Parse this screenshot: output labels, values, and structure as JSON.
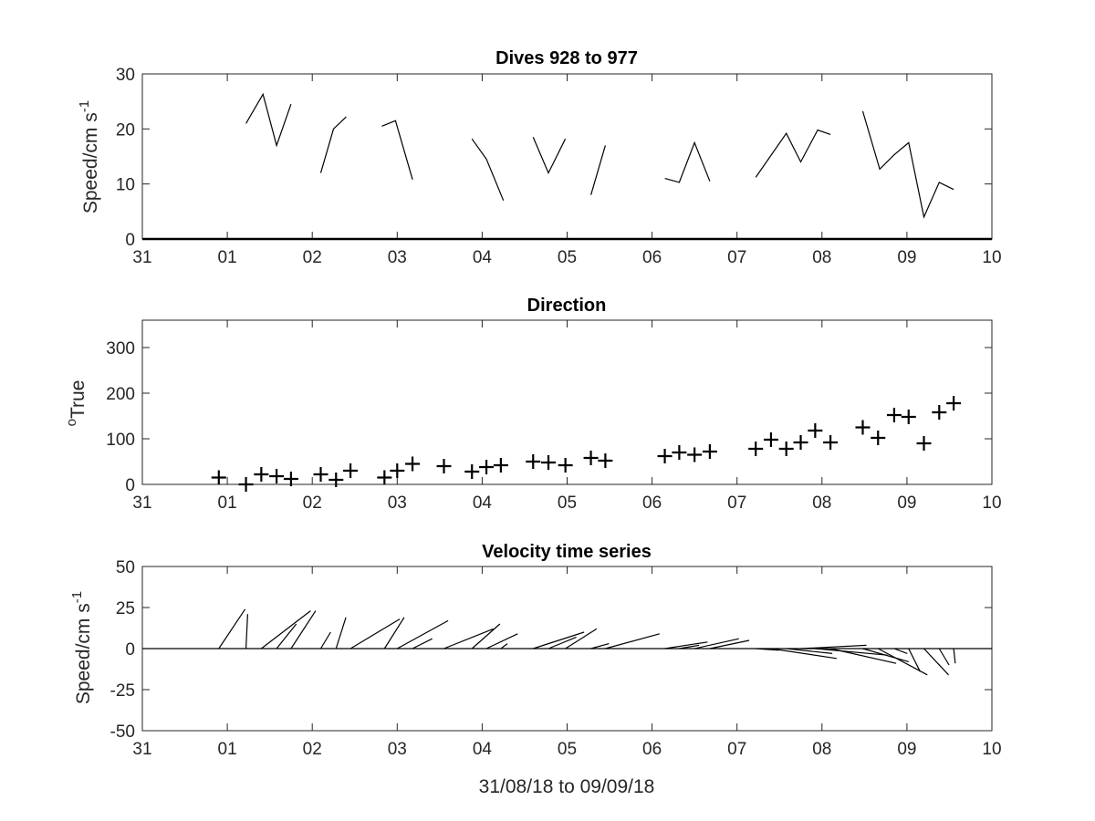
{
  "chart_data": [
    {
      "type": "line",
      "title": "Dives 928 to 977",
      "xlabel": "",
      "ylabel": "Speed/cm s",
      "ylabel_superscript": "-1",
      "xlim": [
        0,
        10
      ],
      "ylim": [
        0,
        30
      ],
      "xticklabels": [
        "31",
        "01",
        "02",
        "03",
        "04",
        "05",
        "06",
        "07",
        "08",
        "09",
        "10"
      ],
      "yticks": [
        0,
        10,
        20,
        30
      ],
      "grid": false,
      "segments": [
        [
          [
            1.22,
            21
          ],
          [
            1.42,
            26.3
          ],
          [
            1.58,
            17
          ],
          [
            1.75,
            24.5
          ]
        ],
        [
          [
            2.1,
            12
          ],
          [
            2.25,
            20
          ],
          [
            2.4,
            22.2
          ]
        ],
        [
          [
            2.82,
            20.5
          ],
          [
            2.98,
            21.5
          ],
          [
            3.18,
            10.8
          ]
        ],
        [
          [
            3.88,
            18.2
          ],
          [
            4.05,
            14.5
          ],
          [
            4.25,
            7
          ]
        ],
        [
          [
            4.6,
            18.5
          ],
          [
            4.78,
            12
          ],
          [
            4.98,
            18.2
          ]
        ],
        [
          [
            5.28,
            8
          ],
          [
            5.45,
            17
          ]
        ],
        [
          [
            6.15,
            11
          ],
          [
            6.32,
            10.3
          ],
          [
            6.5,
            17.5
          ],
          [
            6.68,
            10.5
          ]
        ],
        [
          [
            7.22,
            11.2
          ],
          [
            7.58,
            19.2
          ],
          [
            7.75,
            14
          ],
          [
            7.95,
            19.8
          ],
          [
            8.1,
            19
          ]
        ],
        [
          [
            8.48,
            23.2
          ],
          [
            8.68,
            12.7
          ],
          [
            8.85,
            15.3
          ],
          [
            9.02,
            17.5
          ],
          [
            9.2,
            4
          ],
          [
            9.38,
            10.3
          ],
          [
            9.55,
            9
          ]
        ]
      ]
    },
    {
      "type": "scatter",
      "title": "Direction",
      "xlabel": "",
      "ylabel": "True",
      "ylabel_superscript": "o",
      "xlim": [
        0,
        10
      ],
      "ylim": [
        0,
        360
      ],
      "xticklabels": [
        "31",
        "01",
        "02",
        "03",
        "04",
        "05",
        "06",
        "07",
        "08",
        "09",
        "10"
      ],
      "yticks": [
        0,
        100,
        200,
        300
      ],
      "grid": false,
      "marker": "+",
      "x": [
        0.9,
        1.22,
        1.4,
        1.58,
        1.75,
        2.1,
        2.28,
        2.45,
        2.85,
        3.0,
        3.18,
        3.55,
        3.88,
        4.05,
        4.22,
        4.6,
        4.78,
        4.98,
        5.28,
        5.45,
        6.15,
        6.32,
        6.5,
        6.68,
        7.22,
        7.4,
        7.58,
        7.75,
        7.92,
        8.1,
        8.48,
        8.66,
        8.85,
        9.02,
        9.2,
        9.38,
        9.55
      ],
      "y": [
        15,
        0,
        22,
        18,
        12,
        22,
        10,
        30,
        15,
        30,
        45,
        40,
        28,
        38,
        42,
        50,
        48,
        42,
        58,
        52,
        62,
        70,
        65,
        72,
        78,
        98,
        78,
        92,
        118,
        92,
        125,
        102,
        152,
        148,
        90,
        158,
        178
      ]
    },
    {
      "type": "vector",
      "title": "Velocity time series",
      "xlabel": "31/08/18 to 09/09/18",
      "ylabel": "Speed/cm s",
      "ylabel_superscript": "-1",
      "xlim": [
        0,
        10
      ],
      "ylim": [
        -50,
        50
      ],
      "xticklabels": [
        "31",
        "01",
        "02",
        "03",
        "04",
        "05",
        "06",
        "07",
        "08",
        "09",
        "10"
      ],
      "yticks": [
        -50,
        -25,
        0,
        25,
        50
      ],
      "grid": false,
      "baseline": 0,
      "sticks": [
        {
          "t": 0.9,
          "u": 16,
          "v": 24
        },
        {
          "t": 1.22,
          "u": 1,
          "v": 21
        },
        {
          "t": 1.4,
          "u": 30,
          "v": 23
        },
        {
          "t": 1.58,
          "u": 12,
          "v": 15
        },
        {
          "t": 1.75,
          "u": 15,
          "v": 23
        },
        {
          "t": 2.1,
          "u": 6,
          "v": 10
        },
        {
          "t": 2.28,
          "u": 6,
          "v": 19
        },
        {
          "t": 2.45,
          "u": 30,
          "v": 18
        },
        {
          "t": 2.85,
          "u": 12,
          "v": 19
        },
        {
          "t": 3.0,
          "u": 31,
          "v": 17
        },
        {
          "t": 3.18,
          "u": 12,
          "v": 6
        },
        {
          "t": 3.55,
          "u": 30,
          "v": 12
        },
        {
          "t": 3.88,
          "u": 17,
          "v": 15
        },
        {
          "t": 4.05,
          "u": 19,
          "v": 9
        },
        {
          "t": 4.22,
          "u": 4,
          "v": 3
        },
        {
          "t": 4.6,
          "u": 31,
          "v": 10
        },
        {
          "t": 4.78,
          "u": 17,
          "v": 7
        },
        {
          "t": 4.98,
          "u": 19,
          "v": 12
        },
        {
          "t": 5.28,
          "u": 11,
          "v": 3
        },
        {
          "t": 5.45,
          "u": 33,
          "v": 9
        },
        {
          "t": 6.15,
          "u": 26,
          "v": 4
        },
        {
          "t": 6.32,
          "u": 12,
          "v": 2
        },
        {
          "t": 6.5,
          "u": 27,
          "v": 6
        },
        {
          "t": 6.68,
          "u": 24,
          "v": 5
        },
        {
          "t": 7.22,
          "u": 14,
          "v": -1
        },
        {
          "t": 7.4,
          "u": 40,
          "v": -6
        },
        {
          "t": 7.58,
          "u": 28,
          "v": -3
        },
        {
          "t": 7.75,
          "u": 40,
          "v": 2
        },
        {
          "t": 7.92,
          "u": 44,
          "v": -4
        },
        {
          "t": 8.1,
          "u": 40,
          "v": -9
        },
        {
          "t": 8.48,
          "u": 28,
          "v": -8
        },
        {
          "t": 8.66,
          "u": 30,
          "v": -16
        },
        {
          "t": 8.85,
          "u": 8,
          "v": -3
        },
        {
          "t": 9.02,
          "u": 7,
          "v": -14
        },
        {
          "t": 9.2,
          "u": 15,
          "v": -16
        },
        {
          "t": 9.38,
          "u": 6,
          "v": -10
        },
        {
          "t": 9.55,
          "u": 1,
          "v": -9
        }
      ]
    }
  ]
}
